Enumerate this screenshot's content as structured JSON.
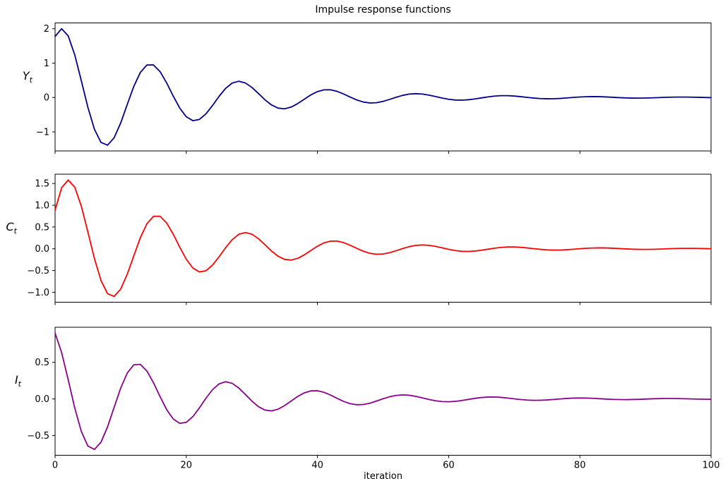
{
  "figure": {
    "background": "#ffffff",
    "frame_color": "#000000"
  },
  "chart_data": {
    "type": "line",
    "title": "Impulse response functions",
    "xlabel": "iteration",
    "layout": {
      "grid": false,
      "legend": false,
      "stacked_subplots": 3,
      "shared_x": true
    },
    "x": {
      "range": [
        0,
        100
      ],
      "ticks": [
        0,
        20,
        40,
        60,
        80,
        100
      ],
      "tick_labels": [
        "0",
        "20",
        "40",
        "60",
        "80",
        "100"
      ]
    },
    "subplots": [
      {
        "name": "Yt",
        "ylabel": {
          "base": "Y",
          "sub": "t"
        },
        "color": "#00008B",
        "ylim": [
          -1.554,
          2.169
        ],
        "yticks": [
          2,
          1,
          0,
          -1
        ],
        "ytick_labels": [
          "2",
          "1",
          "0",
          "−1"
        ],
        "model": {
          "type": "damped_cosine",
          "formula": "y(t) = A * r^t * cos(omega*t + phi)",
          "A": 2.124,
          "r": 0.948,
          "omega": 0.4654,
          "phi": -0.58,
          "t_min": 0,
          "t_max": 100,
          "t_step": 1,
          "period": 13.5
        },
        "key_points_read_from_plot": [
          [
            0,
            1.78
          ],
          [
            1,
            2.0
          ],
          [
            8,
            -1.39
          ],
          [
            14.5,
            0.97
          ],
          [
            21.5,
            -0.66
          ],
          [
            28,
            0.47
          ],
          [
            35,
            -0.31
          ],
          [
            41.5,
            0.24
          ],
          [
            48.5,
            -0.16
          ],
          [
            55,
            0.13
          ],
          [
            62,
            -0.08
          ],
          [
            68.5,
            0.06
          ],
          [
            100,
            0.01
          ]
        ]
      },
      {
        "name": "Ct",
        "ylabel": {
          "base": "C",
          "sub": "t"
        },
        "color": "#FF0000",
        "ylim": [
          -1.228,
          1.714
        ],
        "yticks": [
          1.5,
          1.0,
          0.5,
          0.0,
          -0.5,
          -1.0
        ],
        "ytick_labels": [
          "1.5",
          "1.0",
          "0.5",
          "0.0",
          "−0.5",
          "−1.0"
        ],
        "model": {
          "type": "damped_cosine",
          "formula": "y(t) = A * r^t * cos(omega*t + phi)",
          "A": 1.77,
          "r": 0.948,
          "omega": 0.4654,
          "phi": -1.046,
          "t_min": 0,
          "t_max": 100,
          "t_step": 1,
          "period": 13.5
        },
        "key_points_read_from_plot": [
          [
            0,
            0.89
          ],
          [
            2,
            1.58
          ],
          [
            9,
            -1.09
          ],
          [
            15.5,
            0.78
          ],
          [
            22.5,
            -0.54
          ],
          [
            29,
            0.39
          ],
          [
            36,
            -0.27
          ],
          [
            42.5,
            0.19
          ],
          [
            49.5,
            -0.13
          ],
          [
            56,
            0.09
          ],
          [
            100,
            0.01
          ]
        ]
      },
      {
        "name": "It",
        "ylabel": {
          "base": "I",
          "sub": "t"
        },
        "color": "#8B008B",
        "ylim": [
          -0.769,
          0.979
        ],
        "yticks": [
          0.5,
          0.0,
          -0.5
        ],
        "ytick_labels": [
          "0.5",
          "0.0",
          "−0.5"
        ],
        "model": {
          "type": "damped_cosine",
          "formula": "y(t) = A * r^t * cos(omega*t + phi)",
          "A": 0.95,
          "r": 0.948,
          "omega": 0.4654,
          "phi": 0.327,
          "t_min": 0,
          "t_max": 100,
          "t_step": 1,
          "period": 13.5
        },
        "key_points_read_from_plot": [
          [
            0,
            0.9
          ],
          [
            6,
            -0.69
          ],
          [
            12.5,
            0.49
          ],
          [
            19.5,
            -0.33
          ],
          [
            26,
            0.24
          ],
          [
            33,
            -0.16
          ],
          [
            39.5,
            0.12
          ],
          [
            46.5,
            -0.08
          ],
          [
            53,
            0.06
          ],
          [
            100,
            0.01
          ]
        ]
      }
    ]
  }
}
